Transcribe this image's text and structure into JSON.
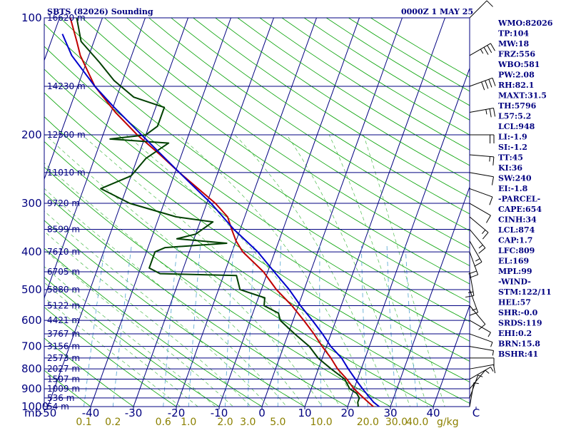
{
  "header": {
    "station_title": "SBTS (82026) Sounding",
    "valid_time": "0000Z  1 MAY 25"
  },
  "indices": [
    "WMO:82026",
    "TP:104",
    "MW:18",
    "FRZ:556",
    "WBO:581",
    "PW:2.08",
    "RH:82.1",
    "MAXT:31.5",
    "TH:5796",
    "L57:5.2",
    "LCL:948",
    "LI:-1.9",
    "SI:-1.2",
    "TT:45",
    "KI:36",
    "SW:240",
    "EI:-1.8",
    "-PARCEL-",
    "CAPE:654",
    "CINH:34",
    "LCL:874",
    "CAP:1.7",
    "LFC:809",
    "EL:169",
    "MPL:99",
    "-WIND-",
    "STM:122/11",
    "HEL:57",
    "SHR:-0.0",
    "SRDS:119",
    "EHI:0.2",
    "BRN:15.8",
    "BSHR:41"
  ],
  "colors": {
    "axes": "#000080",
    "dry_adiabat": "#000080",
    "moist_adiabat": "#00a000",
    "mixing_ratio": "#4fa3cf",
    "temperature": "#c00000",
    "dewpoint": "#004000",
    "parcel": "#0000cc",
    "mixing_label": "#8b8000",
    "barb": "#000000"
  },
  "chart_data": {
    "type": "line",
    "title": "SBTS (82026) Sounding",
    "subtitle": "0000Z  1 MAY 25",
    "xlabel": "°C",
    "x_unit_label": "mb",
    "mixing_ratio_unit": "g/kg",
    "xlim": [
      -50,
      50
    ],
    "ylim": [
      1000,
      100
    ],
    "y_scale": "log-pressure",
    "x_ticks": [
      "-50",
      "-40",
      "-30",
      "-20",
      "-10",
      "0",
      "10",
      "20",
      "30",
      "40",
      "C"
    ],
    "x_tick_values": [
      -50,
      -40,
      -30,
      -20,
      -10,
      0,
      10,
      20,
      30,
      40,
      50
    ],
    "pressure_ticks": [
      100,
      200,
      300,
      400,
      500,
      600,
      700,
      800,
      900,
      1000
    ],
    "heights": [
      {
        "p": 100,
        "label": "16620 m"
      },
      {
        "p": 150,
        "label": "14230 m"
      },
      {
        "p": 200,
        "label": "12500 m"
      },
      {
        "p": 250,
        "label": "11010 m"
      },
      {
        "p": 300,
        "label": "9720 m"
      },
      {
        "p": 350,
        "label": "8599 m"
      },
      {
        "p": 400,
        "label": "7610 m"
      },
      {
        "p": 450,
        "label": "6705 m"
      },
      {
        "p": 500,
        "label": "5880 m"
      },
      {
        "p": 550,
        "label": "5122 m"
      },
      {
        "p": 600,
        "label": "4421 m"
      },
      {
        "p": 650,
        "label": "3767 m"
      },
      {
        "p": 700,
        "label": "3156 m"
      },
      {
        "p": 750,
        "label": "2573 m"
      },
      {
        "p": 800,
        "label": "2027 m"
      },
      {
        "p": 850,
        "label": "1507 m"
      },
      {
        "p": 900,
        "label": "1009 m"
      },
      {
        "p": 950,
        "label": "536 m"
      },
      {
        "p": 1000,
        "label": "54 m"
      }
    ],
    "mixing_ratio_labels": [
      {
        "w": 0.1,
        "label": "0.1"
      },
      {
        "w": 0.2,
        "label": "0.2"
      },
      {
        "w": 0.6,
        "label": "0.6"
      },
      {
        "w": 1.0,
        "label": "1.0"
      },
      {
        "w": 2.0,
        "label": "2.0"
      },
      {
        "w": 3.0,
        "label": "3.0"
      },
      {
        "w": 5.0,
        "label": "5.0"
      },
      {
        "w": 10.0,
        "label": "10.0"
      },
      {
        "w": 20.0,
        "label": "20.0"
      },
      {
        "w": 30.0,
        "label": "30.0"
      },
      {
        "w": 40.0,
        "label": "40.0"
      }
    ],
    "grid": true,
    "legend": "none",
    "series": [
      {
        "key": "temperature",
        "points": [
          [
            1010,
            27
          ],
          [
            1000,
            26
          ],
          [
            975,
            24.5
          ],
          [
            950,
            23
          ],
          [
            925,
            21.5
          ],
          [
            900,
            20
          ],
          [
            850,
            17.5
          ],
          [
            800,
            14.5
          ],
          [
            750,
            12
          ],
          [
            700,
            9
          ],
          [
            650,
            6
          ],
          [
            600,
            2.5
          ],
          [
            550,
            -1.5
          ],
          [
            500,
            -6.5
          ],
          [
            450,
            -11
          ],
          [
            400,
            -17.5
          ],
          [
            375,
            -20
          ],
          [
            350,
            -22
          ],
          [
            325,
            -24
          ],
          [
            300,
            -28
          ],
          [
            250,
            -39
          ],
          [
            225,
            -45
          ],
          [
            200,
            -52
          ],
          [
            175,
            -59
          ],
          [
            150,
            -66
          ],
          [
            125,
            -72
          ],
          [
            115,
            -74
          ],
          [
            100,
            -77.5
          ]
        ]
      },
      {
        "key": "dewpoint",
        "points": [
          [
            1010,
            23.5
          ],
          [
            1000,
            22.5
          ],
          [
            975,
            22
          ],
          [
            950,
            22
          ],
          [
            925,
            21
          ],
          [
            900,
            19
          ],
          [
            850,
            17
          ],
          [
            800,
            13
          ],
          [
            750,
            9
          ],
          [
            700,
            6
          ],
          [
            650,
            1.5
          ],
          [
            600,
            -3
          ],
          [
            575,
            -4
          ],
          [
            550,
            -8
          ],
          [
            525,
            -8.5
          ],
          [
            500,
            -15
          ],
          [
            460,
            -17
          ],
          [
            455,
            -35
          ],
          [
            440,
            -38
          ],
          [
            420,
            -38
          ],
          [
            400,
            -38
          ],
          [
            390,
            -36
          ],
          [
            380,
            -22
          ],
          [
            370,
            -34
          ],
          [
            360,
            -30
          ],
          [
            335,
            -27
          ],
          [
            325,
            -36
          ],
          [
            300,
            -48
          ],
          [
            275,
            -56
          ],
          [
            255,
            -50
          ],
          [
            230,
            -48
          ],
          [
            210,
            -44
          ],
          [
            205,
            -58
          ],
          [
            200,
            -50
          ],
          [
            190,
            -48
          ],
          [
            185,
            -48
          ],
          [
            170,
            -48
          ],
          [
            160,
            -56
          ],
          [
            145,
            -62
          ],
          [
            130,
            -67
          ],
          [
            115,
            -73
          ],
          [
            100,
            -76
          ]
        ]
      },
      {
        "key": "parcel",
        "points": [
          [
            1010,
            28
          ],
          [
            974,
            25.7
          ],
          [
            950,
            24.5
          ],
          [
            900,
            22
          ],
          [
            850,
            19.5
          ],
          [
            800,
            17
          ],
          [
            750,
            14.5
          ],
          [
            700,
            11
          ],
          [
            650,
            8
          ],
          [
            600,
            4.5
          ],
          [
            550,
            0.5
          ],
          [
            500,
            -3.5
          ],
          [
            450,
            -8.5
          ],
          [
            400,
            -14
          ],
          [
            350,
            -21.5
          ],
          [
            300,
            -29
          ],
          [
            250,
            -39
          ],
          [
            200,
            -51
          ],
          [
            169,
            -60
          ],
          [
            150,
            -66
          ],
          [
            125,
            -74
          ],
          [
            110,
            -78
          ]
        ]
      }
    ],
    "wind_barbs": [
      {
        "p": 100,
        "dir": 45,
        "spd": 10
      },
      {
        "p": 125,
        "dir": 60,
        "spd": 35
      },
      {
        "p": 150,
        "dir": 70,
        "spd": 40
      },
      {
        "p": 175,
        "dir": 80,
        "spd": 25
      },
      {
        "p": 200,
        "dir": 90,
        "spd": 20
      },
      {
        "p": 225,
        "dir": 95,
        "spd": 15
      },
      {
        "p": 250,
        "dir": 100,
        "spd": 10
      },
      {
        "p": 275,
        "dir": 110,
        "spd": 10
      },
      {
        "p": 300,
        "dir": 120,
        "spd": 10
      },
      {
        "p": 325,
        "dir": 130,
        "spd": 15
      },
      {
        "p": 350,
        "dir": 140,
        "spd": 15
      },
      {
        "p": 375,
        "dir": 150,
        "spd": 15
      },
      {
        "p": 400,
        "dir": 160,
        "spd": 20
      },
      {
        "p": 450,
        "dir": 170,
        "spd": 15
      },
      {
        "p": 500,
        "dir": 160,
        "spd": 15
      },
      {
        "p": 550,
        "dir": 140,
        "spd": 10
      },
      {
        "p": 600,
        "dir": 120,
        "spd": 5
      },
      {
        "p": 650,
        "dir": 110,
        "spd": 5
      },
      {
        "p": 700,
        "dir": 100,
        "spd": 5
      },
      {
        "p": 750,
        "dir": 90,
        "spd": 10
      },
      {
        "p": 800,
        "dir": 80,
        "spd": 10
      },
      {
        "p": 850,
        "dir": 60,
        "spd": 5
      },
      {
        "p": 900,
        "dir": 40,
        "spd": 5
      },
      {
        "p": 950,
        "dir": 20,
        "spd": 5
      },
      {
        "p": 1000,
        "dir": 10,
        "spd": 5
      }
    ]
  }
}
